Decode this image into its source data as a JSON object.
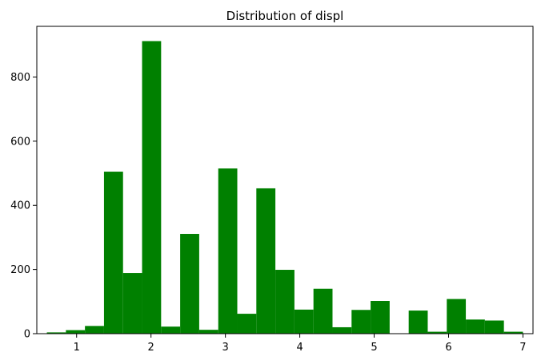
{
  "chart_data": {
    "type": "bar",
    "title": "Distribution of displ",
    "xlabel": "",
    "ylabel": "",
    "xlim": [
      0.465,
      7.135
    ],
    "ylim": [
      0,
      958
    ],
    "grid": false,
    "bar_color": "#008000",
    "bins": [
      {
        "x0": 0.6,
        "x1": 0.856,
        "count": 4
      },
      {
        "x0": 0.856,
        "x1": 1.112,
        "count": 11
      },
      {
        "x0": 1.112,
        "x1": 1.368,
        "count": 24
      },
      {
        "x0": 1.368,
        "x1": 1.624,
        "count": 505
      },
      {
        "x0": 1.624,
        "x1": 1.88,
        "count": 189
      },
      {
        "x0": 1.88,
        "x1": 2.136,
        "count": 912
      },
      {
        "x0": 2.136,
        "x1": 2.392,
        "count": 22
      },
      {
        "x0": 2.392,
        "x1": 2.648,
        "count": 311
      },
      {
        "x0": 2.648,
        "x1": 2.904,
        "count": 12
      },
      {
        "x0": 2.904,
        "x1": 3.16,
        "count": 515
      },
      {
        "x0": 3.16,
        "x1": 3.416,
        "count": 62
      },
      {
        "x0": 3.416,
        "x1": 3.672,
        "count": 453
      },
      {
        "x0": 3.672,
        "x1": 3.928,
        "count": 199
      },
      {
        "x0": 3.928,
        "x1": 4.184,
        "count": 75
      },
      {
        "x0": 4.184,
        "x1": 4.44,
        "count": 140
      },
      {
        "x0": 4.44,
        "x1": 4.696,
        "count": 20
      },
      {
        "x0": 4.696,
        "x1": 4.952,
        "count": 74
      },
      {
        "x0": 4.952,
        "x1": 5.208,
        "count": 102
      },
      {
        "x0": 5.208,
        "x1": 5.464,
        "count": 0
      },
      {
        "x0": 5.464,
        "x1": 5.72,
        "count": 72
      },
      {
        "x0": 5.72,
        "x1": 5.976,
        "count": 6
      },
      {
        "x0": 5.976,
        "x1": 6.232,
        "count": 108
      },
      {
        "x0": 6.232,
        "x1": 6.488,
        "count": 44
      },
      {
        "x0": 6.488,
        "x1": 6.744,
        "count": 41
      },
      {
        "x0": 6.744,
        "x1": 7.0,
        "count": 6
      }
    ],
    "x_ticks": [
      1,
      2,
      3,
      4,
      5,
      6,
      7
    ],
    "x_tick_labels": [
      "1",
      "2",
      "3",
      "4",
      "5",
      "6",
      "7"
    ],
    "y_ticks": [
      0,
      200,
      400,
      600,
      800
    ],
    "y_tick_labels": [
      "0",
      "200",
      "400",
      "600",
      "800"
    ]
  }
}
